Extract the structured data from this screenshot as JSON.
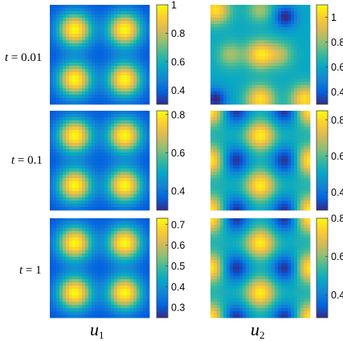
{
  "figure": {
    "row_labels": [
      {
        "var": "t",
        "eq": " = 0.01"
      },
      {
        "var": "t",
        "eq": " = 0.1"
      },
      {
        "var": "t",
        "eq": " = 1"
      }
    ],
    "column_labels": [
      {
        "base": "u",
        "sub": "1"
      },
      {
        "base": "u",
        "sub": "2"
      }
    ],
    "colormap": [
      "#352a87",
      "#0363e1",
      "#1485d4",
      "#06a7c6",
      "#38b99e",
      "#92bf73",
      "#d9ba56",
      "#fcce2e",
      "#f9fb0e"
    ]
  },
  "panels": [
    {
      "id": "u1-t001",
      "field": "u1",
      "pattern": "peaks",
      "min": 0.3,
      "max": 1.0,
      "ticks": [
        {
          "v": 1.0,
          "label": "1"
        },
        {
          "v": 0.8,
          "label": "0.8"
        },
        {
          "v": 0.6,
          "label": "0.6"
        },
        {
          "v": 0.4,
          "label": "0.4"
        }
      ]
    },
    {
      "id": "u2-t001",
      "field": "u2",
      "pattern": "mixed",
      "min": 0.3,
      "max": 1.1,
      "ticks": [
        {
          "v": 1.0,
          "label": "1"
        },
        {
          "v": 0.8,
          "label": "0.8"
        },
        {
          "v": 0.6,
          "label": "0.6"
        },
        {
          "v": 0.4,
          "label": "0.4"
        }
      ]
    },
    {
      "id": "u1-t01",
      "field": "u1",
      "pattern": "peaks",
      "min": 0.3,
      "max": 0.82,
      "ticks": [
        {
          "v": 0.8,
          "label": "0.8"
        },
        {
          "v": 0.6,
          "label": "0.6"
        },
        {
          "v": 0.4,
          "label": "0.4"
        }
      ]
    },
    {
      "id": "u2-t01",
      "field": "u2",
      "pattern": "lattice",
      "min": 0.3,
      "max": 0.85,
      "ticks": [
        {
          "v": 0.8,
          "label": "0.8"
        },
        {
          "v": 0.6,
          "label": "0.6"
        },
        {
          "v": 0.4,
          "label": "0.4"
        }
      ]
    },
    {
      "id": "u1-t1",
      "field": "u1",
      "pattern": "peaks",
      "min": 0.25,
      "max": 0.73,
      "ticks": [
        {
          "v": 0.7,
          "label": "0.7"
        },
        {
          "v": 0.6,
          "label": "0.6"
        },
        {
          "v": 0.5,
          "label": "0.5"
        },
        {
          "v": 0.4,
          "label": "0.4"
        },
        {
          "v": 0.3,
          "label": "0.3"
        }
      ]
    },
    {
      "id": "u2-t1",
      "field": "u2",
      "pattern": "lattice",
      "min": 0.28,
      "max": 0.8,
      "ticks": [
        {
          "v": 0.8,
          "label": "0.8"
        },
        {
          "v": 0.6,
          "label": "0.6"
        },
        {
          "v": 0.4,
          "label": "0.4"
        }
      ]
    }
  ]
}
